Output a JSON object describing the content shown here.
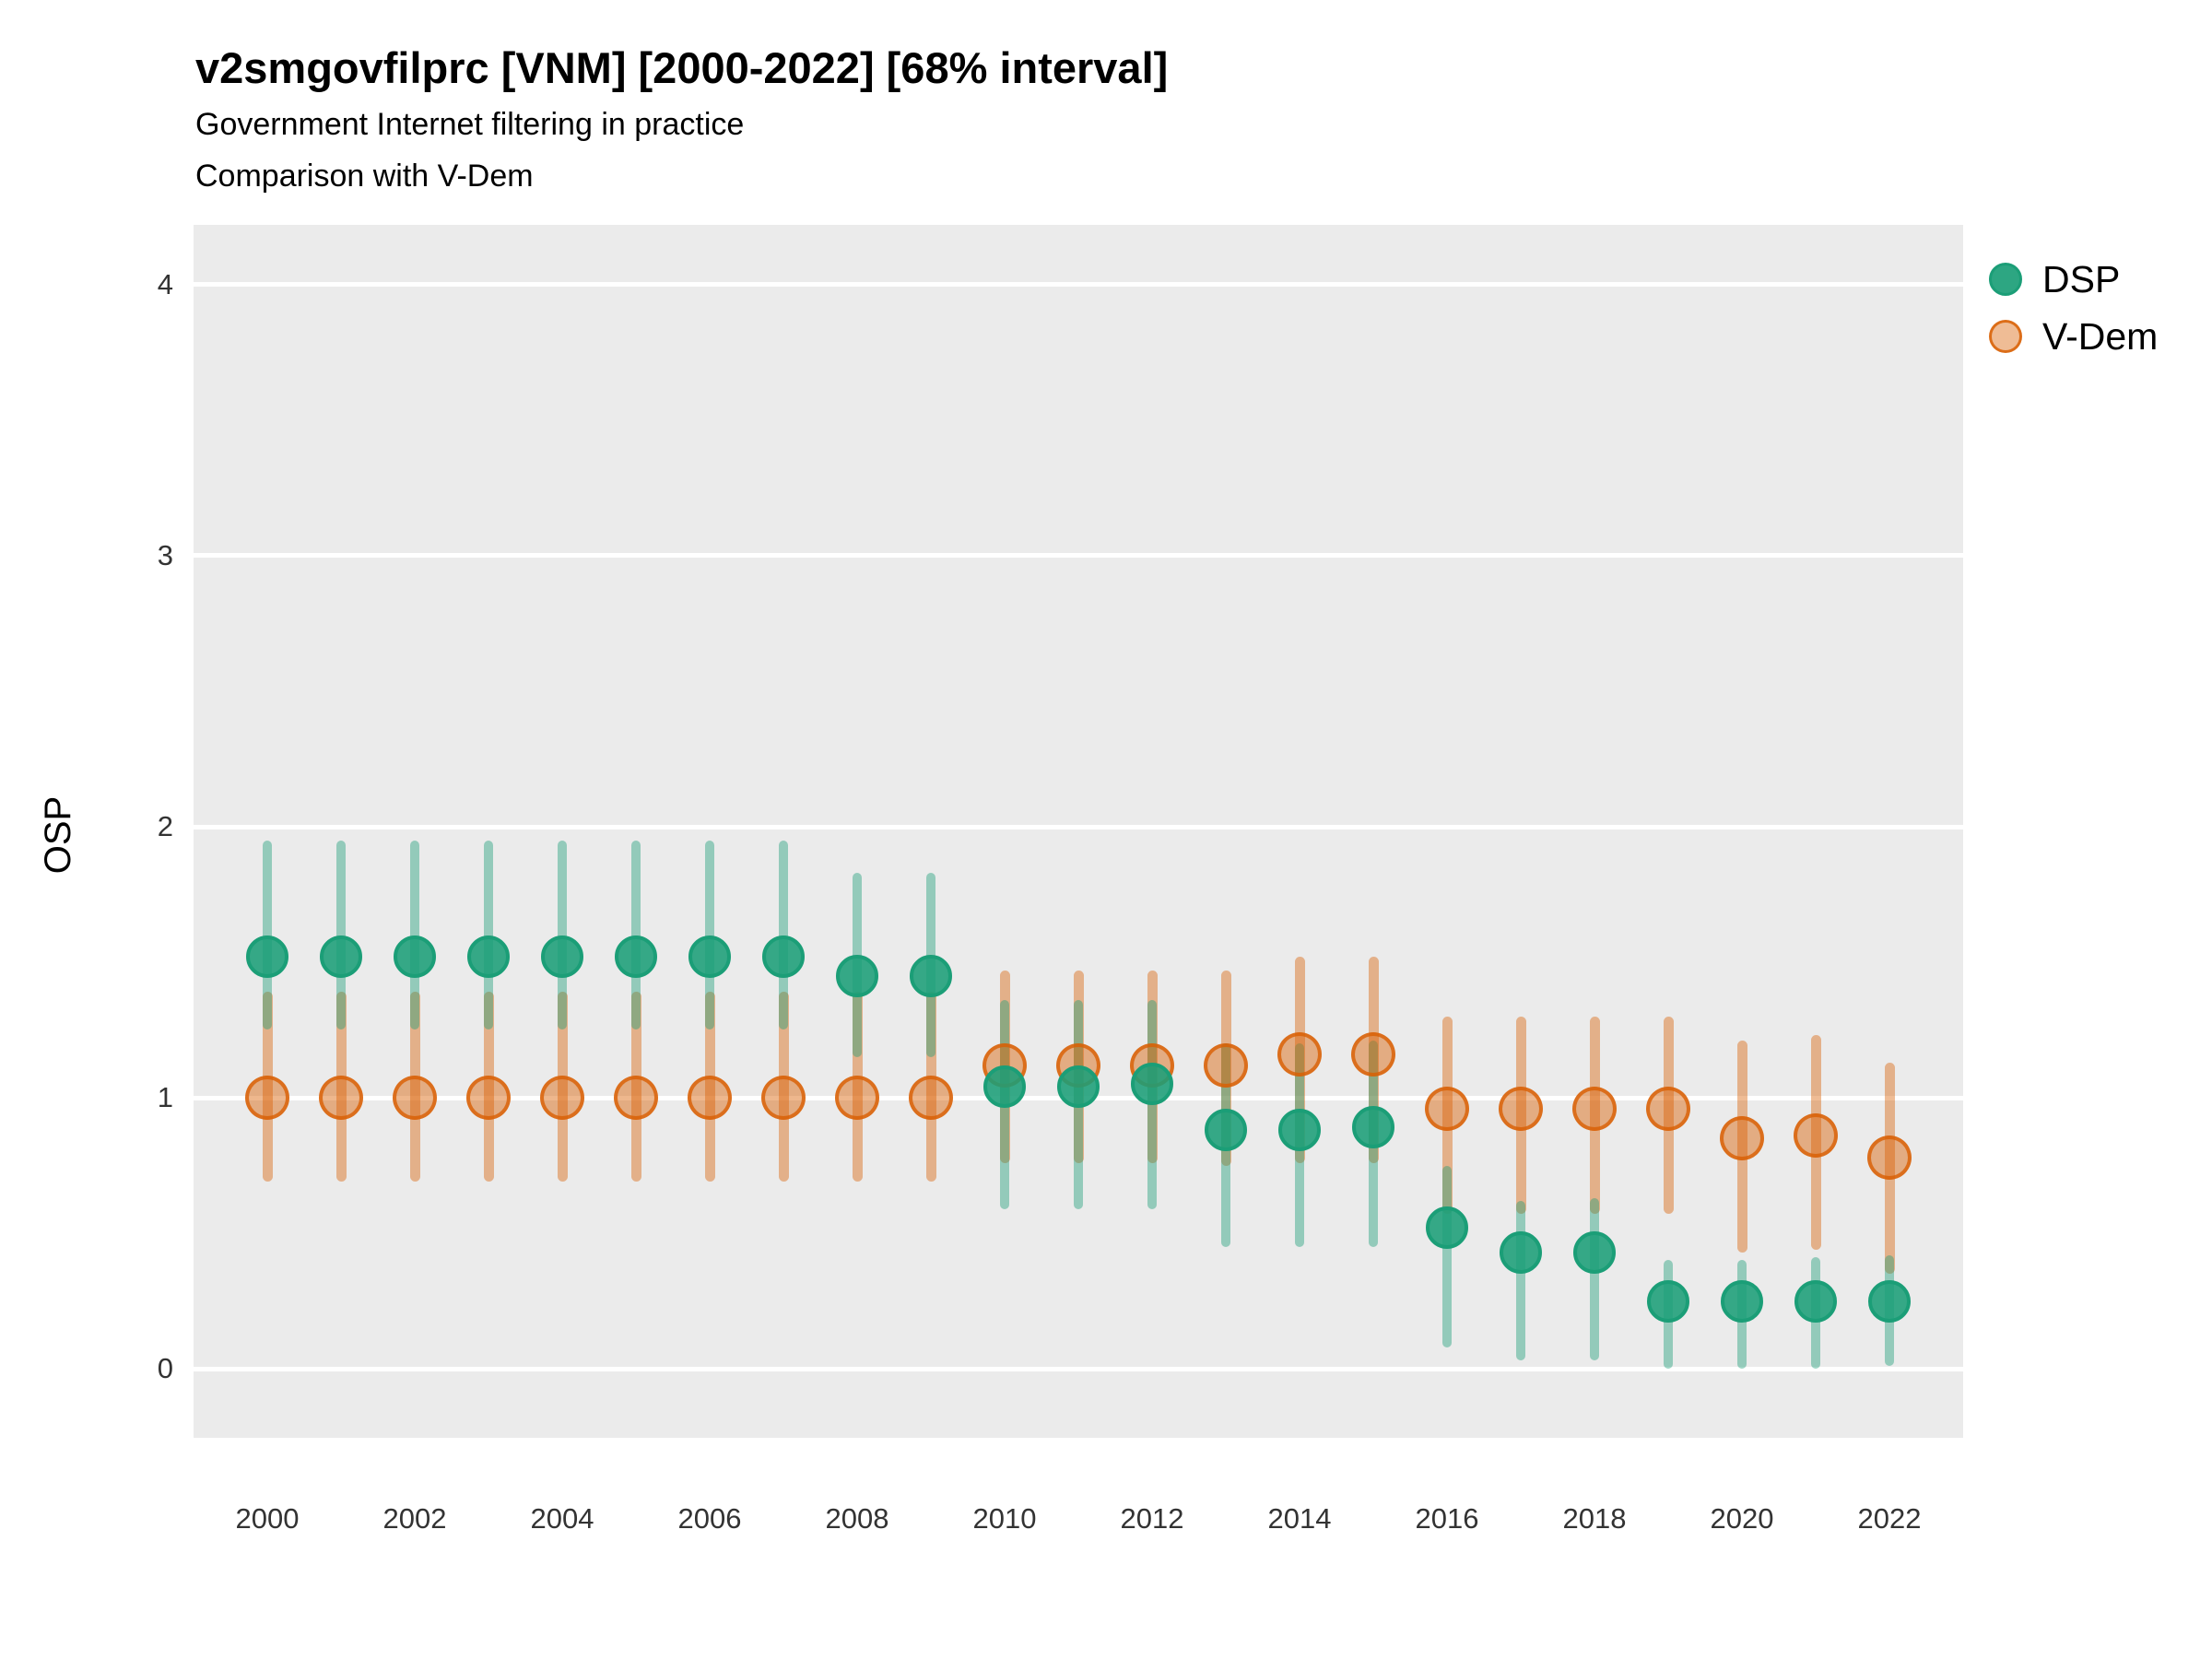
{
  "header": {
    "title": "v2smgovfilprc [VNM] [2000-2022] [68% interval]",
    "subtitle1": "Government Internet filtering in practice",
    "subtitle2": "Comparison with V-Dem"
  },
  "legend": {
    "dsp_label": "DSP",
    "vdem_label": "V-Dem"
  },
  "colors": {
    "dsp": "#1b9e77",
    "vdem": "#d95f02",
    "panel_background": "#ebebeb",
    "gridline": "#ffffff"
  },
  "chart_data": {
    "type": "scatter",
    "title": "v2smgovfilprc [VNM] [2000-2022] [68% interval]",
    "subtitle": [
      "Government Internet filtering in practice",
      "Comparison with V-Dem"
    ],
    "xlabel": "",
    "ylabel": "OSP",
    "interval": "68%",
    "grid": "on",
    "legend_position": "right",
    "xlim": [
      1999,
      2023
    ],
    "ylim": [
      -0.255,
      4.221
    ],
    "x_ticks": [
      2000,
      2002,
      2004,
      2006,
      2008,
      2010,
      2012,
      2014,
      2016,
      2018,
      2020,
      2022
    ],
    "y_ticks": [
      0,
      1,
      2,
      3,
      4
    ],
    "series": [
      {
        "name": "V-Dem",
        "color": "#d95f02",
        "points": [
          {
            "year": 2000,
            "value": 1.0,
            "lo": 0.69,
            "hi": 1.39
          },
          {
            "year": 2001,
            "value": 1.0,
            "lo": 0.69,
            "hi": 1.39
          },
          {
            "year": 2002,
            "value": 1.0,
            "lo": 0.69,
            "hi": 1.39
          },
          {
            "year": 2003,
            "value": 1.0,
            "lo": 0.69,
            "hi": 1.39
          },
          {
            "year": 2004,
            "value": 1.0,
            "lo": 0.69,
            "hi": 1.39
          },
          {
            "year": 2005,
            "value": 1.0,
            "lo": 0.69,
            "hi": 1.39
          },
          {
            "year": 2006,
            "value": 1.0,
            "lo": 0.69,
            "hi": 1.39
          },
          {
            "year": 2007,
            "value": 1.0,
            "lo": 0.69,
            "hi": 1.39
          },
          {
            "year": 2008,
            "value": 1.0,
            "lo": 0.69,
            "hi": 1.39
          },
          {
            "year": 2009,
            "value": 1.0,
            "lo": 0.69,
            "hi": 1.39
          },
          {
            "year": 2010,
            "value": 1.12,
            "lo": 0.76,
            "hi": 1.47
          },
          {
            "year": 2011,
            "value": 1.12,
            "lo": 0.76,
            "hi": 1.47
          },
          {
            "year": 2012,
            "value": 1.12,
            "lo": 0.76,
            "hi": 1.47
          },
          {
            "year": 2013,
            "value": 1.12,
            "lo": 0.75,
            "hi": 1.47
          },
          {
            "year": 2014,
            "value": 1.16,
            "lo": 0.76,
            "hi": 1.52
          },
          {
            "year": 2015,
            "value": 1.16,
            "lo": 0.76,
            "hi": 1.52
          },
          {
            "year": 2016,
            "value": 0.96,
            "lo": 0.57,
            "hi": 1.3
          },
          {
            "year": 2017,
            "value": 0.96,
            "lo": 0.57,
            "hi": 1.3
          },
          {
            "year": 2018,
            "value": 0.96,
            "lo": 0.57,
            "hi": 1.3
          },
          {
            "year": 2019,
            "value": 0.96,
            "lo": 0.57,
            "hi": 1.3
          },
          {
            "year": 2020,
            "value": 0.85,
            "lo": 0.43,
            "hi": 1.21
          },
          {
            "year": 2021,
            "value": 0.86,
            "lo": 0.44,
            "hi": 1.23
          },
          {
            "year": 2022,
            "value": 0.78,
            "lo": 0.35,
            "hi": 1.13
          }
        ]
      },
      {
        "name": "DSP",
        "color": "#1b9e77",
        "points": [
          {
            "year": 2000,
            "value": 1.52,
            "lo": 1.25,
            "hi": 1.95
          },
          {
            "year": 2001,
            "value": 1.52,
            "lo": 1.25,
            "hi": 1.95
          },
          {
            "year": 2002,
            "value": 1.52,
            "lo": 1.25,
            "hi": 1.95
          },
          {
            "year": 2003,
            "value": 1.52,
            "lo": 1.25,
            "hi": 1.95
          },
          {
            "year": 2004,
            "value": 1.52,
            "lo": 1.25,
            "hi": 1.95
          },
          {
            "year": 2005,
            "value": 1.52,
            "lo": 1.25,
            "hi": 1.95
          },
          {
            "year": 2006,
            "value": 1.52,
            "lo": 1.25,
            "hi": 1.95
          },
          {
            "year": 2007,
            "value": 1.52,
            "lo": 1.25,
            "hi": 1.95
          },
          {
            "year": 2008,
            "value": 1.45,
            "lo": 1.15,
            "hi": 1.83
          },
          {
            "year": 2009,
            "value": 1.45,
            "lo": 1.15,
            "hi": 1.83
          },
          {
            "year": 2010,
            "value": 1.04,
            "lo": 0.59,
            "hi": 1.36
          },
          {
            "year": 2011,
            "value": 1.04,
            "lo": 0.59,
            "hi": 1.36
          },
          {
            "year": 2012,
            "value": 1.05,
            "lo": 0.59,
            "hi": 1.36
          },
          {
            "year": 2013,
            "value": 0.88,
            "lo": 0.45,
            "hi": 1.2
          },
          {
            "year": 2014,
            "value": 0.88,
            "lo": 0.45,
            "hi": 1.2
          },
          {
            "year": 2015,
            "value": 0.89,
            "lo": 0.45,
            "hi": 1.21
          },
          {
            "year": 2016,
            "value": 0.52,
            "lo": 0.08,
            "hi": 0.75
          },
          {
            "year": 2017,
            "value": 0.43,
            "lo": 0.03,
            "hi": 0.62
          },
          {
            "year": 2018,
            "value": 0.43,
            "lo": 0.03,
            "hi": 0.63
          },
          {
            "year": 2019,
            "value": 0.25,
            "lo": 0.0,
            "hi": 0.4
          },
          {
            "year": 2020,
            "value": 0.25,
            "lo": 0.0,
            "hi": 0.4
          },
          {
            "year": 2021,
            "value": 0.25,
            "lo": 0.0,
            "hi": 0.41
          },
          {
            "year": 2022,
            "value": 0.25,
            "lo": 0.01,
            "hi": 0.42
          }
        ]
      }
    ]
  }
}
